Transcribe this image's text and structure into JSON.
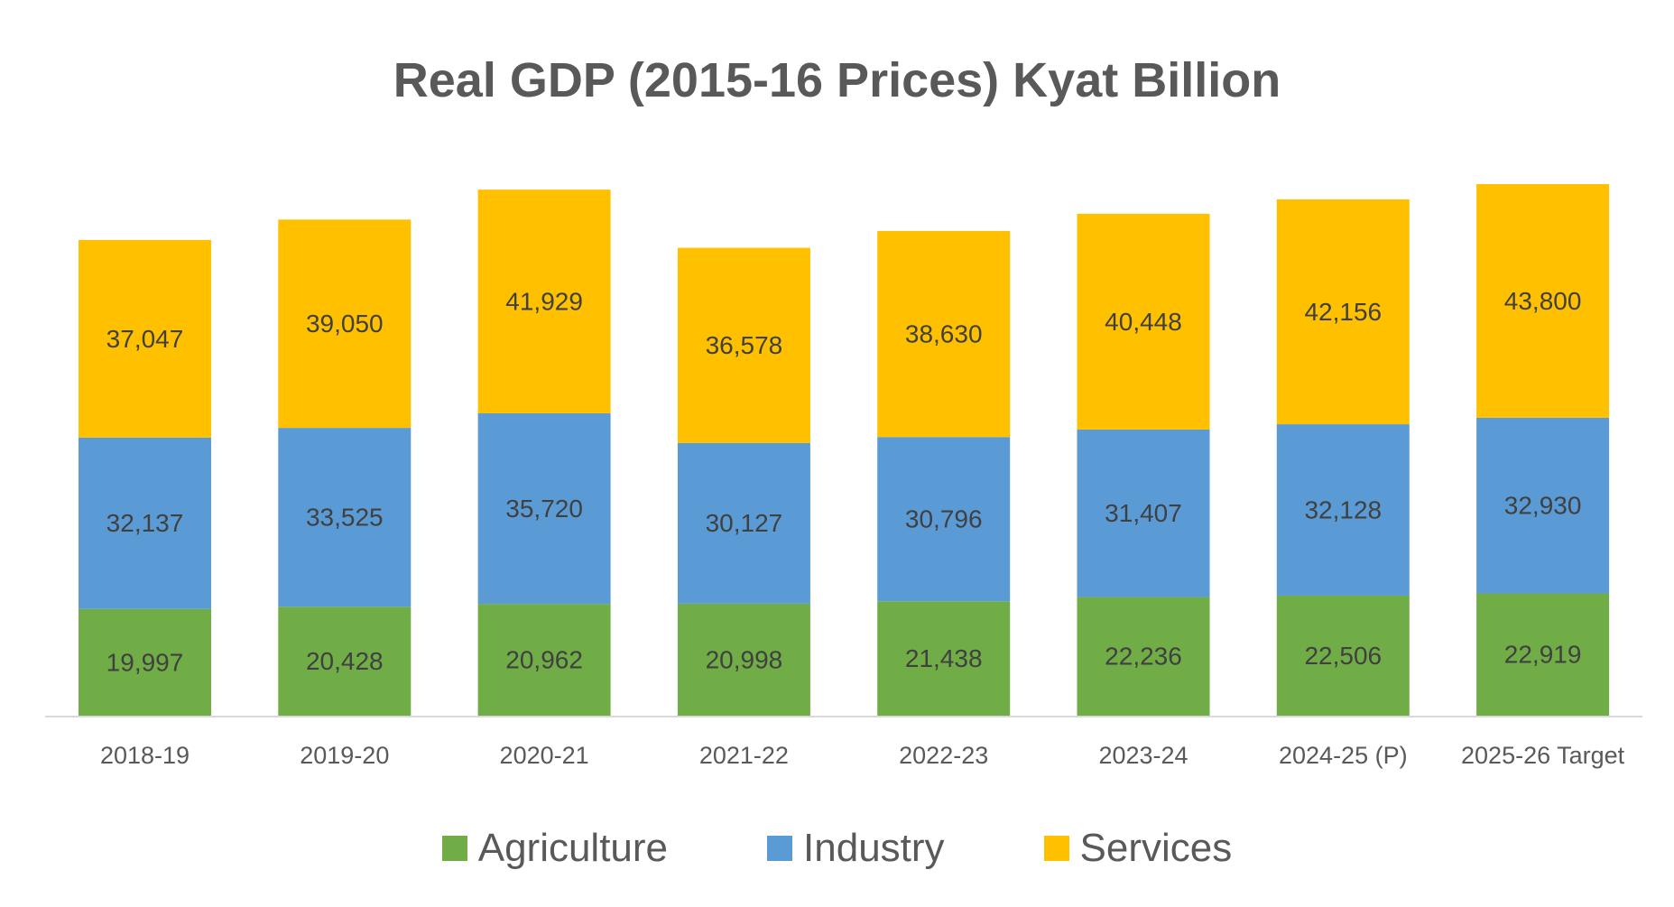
{
  "chart_data": {
    "type": "bar",
    "stacked": true,
    "title": "Real GDP (2015-16 Prices) Kyat Billion",
    "xlabel": "",
    "ylabel": "",
    "categories": [
      "2018-19",
      "2019-20",
      "2020-21",
      "2021-22",
      "2022-23",
      "2023-24",
      "2024-25 (P)",
      "2025-26 Target"
    ],
    "series": [
      {
        "name": "Agriculture",
        "color": "#70AD47",
        "values": [
          19997,
          20428,
          20962,
          20998,
          21438,
          22236,
          22506,
          22919
        ],
        "labels": [
          "19,997",
          "20,428",
          "20,962",
          "20,998",
          "21,438",
          "22,236",
          "22,506",
          "22,919"
        ]
      },
      {
        "name": "Industry",
        "color": "#5B9BD5",
        "values": [
          32137,
          33525,
          35720,
          30127,
          30796,
          31407,
          32128,
          32930
        ],
        "labels": [
          "32,137",
          "33,525",
          "35,720",
          "30,127",
          "30,796",
          "31,407",
          "32,128",
          "32,930"
        ]
      },
      {
        "name": "Services",
        "color": "#FFC000",
        "values": [
          37047,
          39050,
          41929,
          36578,
          38630,
          40448,
          42156,
          43800
        ],
        "labels": [
          "37,047",
          "39,050",
          "41,929",
          "36,578",
          "38,630",
          "40,448",
          "42,156",
          "43,800"
        ]
      }
    ],
    "ylim": [
      0,
      100000
    ],
    "grid": false,
    "y_axis_visible": false,
    "legend": "bottom"
  }
}
